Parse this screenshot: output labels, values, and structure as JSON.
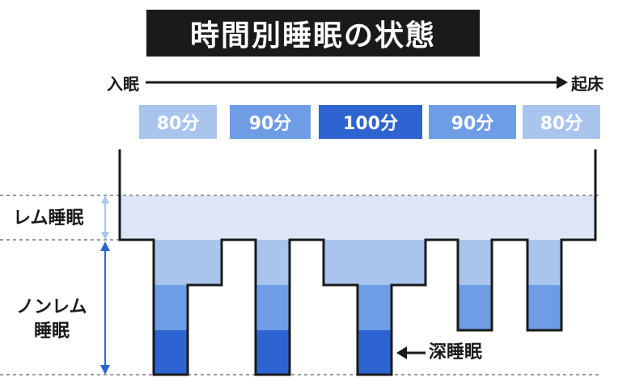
{
  "title": "時間別睡眠の状態",
  "timeline": {
    "start_label": "入眠",
    "end_label": "起床"
  },
  "cycles": [
    {
      "label": "80分",
      "color": "#a9c5ee"
    },
    {
      "label": "90分",
      "color": "#6e9de6"
    },
    {
      "label": "100分",
      "color": "#2e64d1"
    },
    {
      "label": "90分",
      "color": "#6e9de6"
    },
    {
      "label": "80分",
      "color": "#a9c5ee"
    }
  ],
  "stages": {
    "rem_label": "レム睡眠",
    "nonrem_label_line1": "ノンレム",
    "nonrem_label_line2": "睡眠",
    "deep_label": "深睡眠"
  },
  "colors": {
    "rem_band": "#dde6f7",
    "light": "#a9c5ee",
    "mid": "#6e9de6",
    "deep": "#2e64d1"
  }
}
